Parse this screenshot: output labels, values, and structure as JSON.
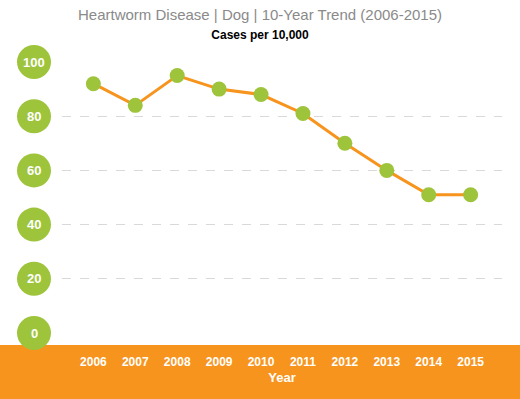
{
  "chart_data": {
    "type": "line",
    "title": "Heartworm Disease | Dog | 10-Year Trend (2006-2015)",
    "subtitle": "Cases per 10,000",
    "x_label": "Year",
    "categories": [
      "2006",
      "2007",
      "2008",
      "2009",
      "2010",
      "2011",
      "2012",
      "2013",
      "2014",
      "2015"
    ],
    "values": [
      92,
      84,
      95,
      90,
      88,
      81,
      70,
      60,
      51,
      51
    ],
    "color": "#f7941d",
    "marker": "circle",
    "ylim": [
      0,
      100
    ],
    "yticks": [
      0,
      20,
      40,
      60,
      80,
      100
    ],
    "grid": true
  }
}
